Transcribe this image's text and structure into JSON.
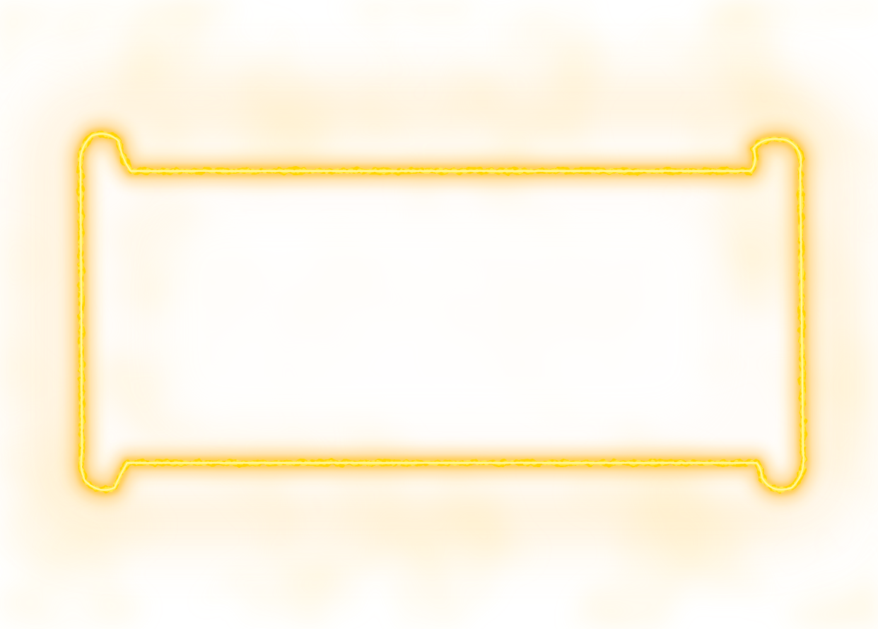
{
  "colors": {
    "background": "#ffffff",
    "glow_outer": "#ffd27a",
    "glow_mid": "#ffbf3a",
    "frame_stroke": "#ffd400",
    "frame_core": "#fff7a8",
    "mist": "#fff1d6"
  },
  "frame": {
    "style": "electric-scroll-frame",
    "icon": "glowing-lightning-frame"
  }
}
